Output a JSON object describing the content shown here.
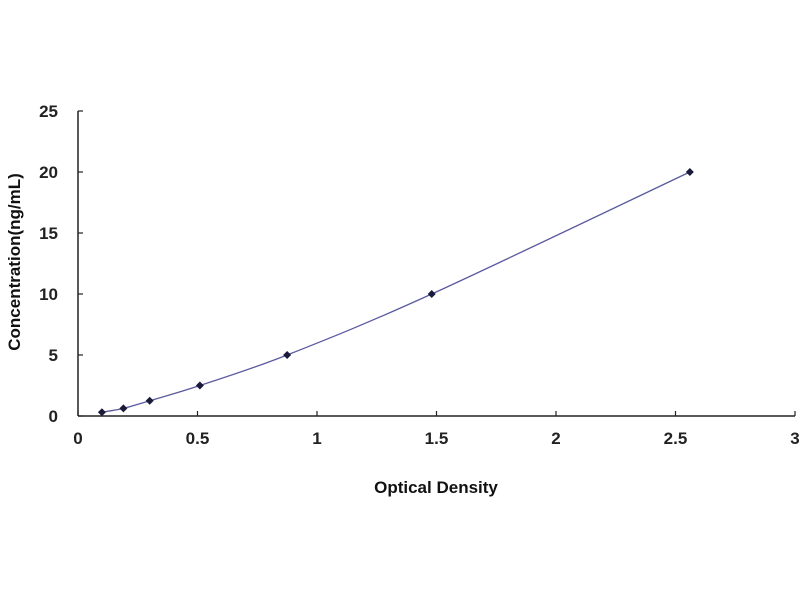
{
  "chart_data": {
    "type": "line",
    "title": "",
    "xlabel": "Optical Density",
    "ylabel": "Concentration(ng/mL)",
    "xlim": [
      0,
      3
    ],
    "ylim": [
      0,
      25
    ],
    "xticks": [
      "0",
      "0.5",
      "1",
      "1.5",
      "2",
      "2.5",
      "3"
    ],
    "yticks": [
      "0",
      "5",
      "10",
      "15",
      "20",
      "25"
    ],
    "grid": false,
    "series": [
      {
        "x": [
          0.1,
          0.19,
          0.3,
          0.51,
          0.875,
          1.48,
          2.56
        ],
        "y": [
          0.312,
          0.625,
          1.25,
          2.5,
          5,
          10,
          20
        ],
        "line_color": "#5a5aa0",
        "marker_color": "#1a1a3a"
      }
    ]
  }
}
